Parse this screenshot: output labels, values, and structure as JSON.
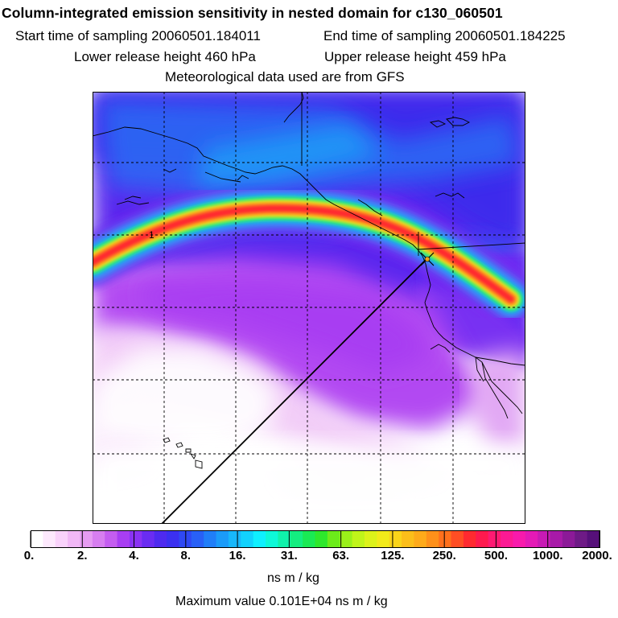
{
  "header": {
    "title": "Column-integrated emission sensitivity in nested domain for c130_060501",
    "start_time": "Start time of sampling 20060501.184011",
    "end_time": "End time of sampling 20060501.184225",
    "lower_height": "Lower release height  460 hPa",
    "upper_height": "Upper release height  459 hPa",
    "met_data": "Meteorological data used are from GFS"
  },
  "map": {
    "marker_label": "1",
    "colors": {
      "background": "#ffffff",
      "ocean_base": "#5a28ee",
      "plume_core": "#ff2030",
      "grid": "#000000",
      "coast": "#000000"
    }
  },
  "legend": {
    "tick_labels": [
      "0.",
      "2.",
      "4.",
      "8.",
      "16.",
      "31.",
      "63.",
      "125.",
      "250.",
      "500.",
      "1000.",
      "2000."
    ],
    "colors": [
      "#ffffff",
      "#fde9fd",
      "#f9d2fb",
      "#f1b8f6",
      "#e69cf2",
      "#d77ef0",
      "#c45df0",
      "#a83ef2",
      "#8a32f4",
      "#6a2cf2",
      "#4e2aef",
      "#3b30f0",
      "#2f48f3",
      "#2860f6",
      "#207ef8",
      "#1b9bf9",
      "#18b7fb",
      "#12d2fd",
      "#0ff0ff",
      "#0ef8d8",
      "#10f2ab",
      "#14ee80",
      "#1aea54",
      "#2ee82c",
      "#6cec1a",
      "#9af01a",
      "#c0f41a",
      "#dcf21a",
      "#f2ea1a",
      "#fad41a",
      "#fcbe1a",
      "#feaa1a",
      "#fe901a",
      "#ff701c",
      "#ff4e24",
      "#ff2a30",
      "#fe1a4e",
      "#fd1a72",
      "#fc1a94",
      "#f81aac",
      "#e41ab6",
      "#c81ab4",
      "#a81aa8",
      "#8c1a98",
      "#6e1a86",
      "#56107a"
    ],
    "units": "ns m / kg",
    "max_value": "Maximum value  0.101E+04 ns m / kg"
  }
}
